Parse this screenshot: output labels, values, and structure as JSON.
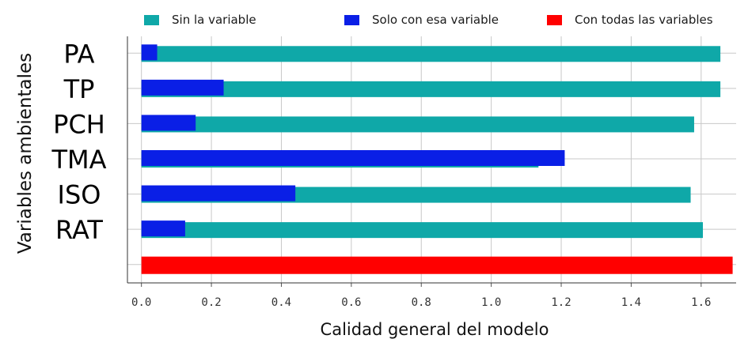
{
  "chart_data": {
    "type": "bar",
    "orientation": "horizontal",
    "categories": [
      "PA",
      "TP",
      "PCH",
      "TMA",
      "ISO",
      "RAT"
    ],
    "series": [
      {
        "name": "Sin la variable",
        "color": "#0fa8a8",
        "values": [
          1.655,
          1.655,
          1.58,
          1.135,
          1.57,
          1.605
        ]
      },
      {
        "name": "Solo con esa variable",
        "color": "#0a1fe6",
        "values": [
          0.045,
          0.235,
          0.155,
          1.21,
          0.44,
          0.125
        ]
      },
      {
        "name": "Con todas las variables",
        "color": "#ff0000",
        "value": 1.69
      }
    ],
    "xlabel": "Calidad general del modelo",
    "ylabel": "Variables ambientales",
    "xlim": [
      -0.04,
      1.7
    ],
    "xticks": [
      "0.0",
      "0.2",
      "0.4",
      "0.6",
      "0.8",
      "1.0",
      "1.2",
      "1.4",
      "1.6"
    ],
    "grid": true,
    "legend_position": "top"
  }
}
